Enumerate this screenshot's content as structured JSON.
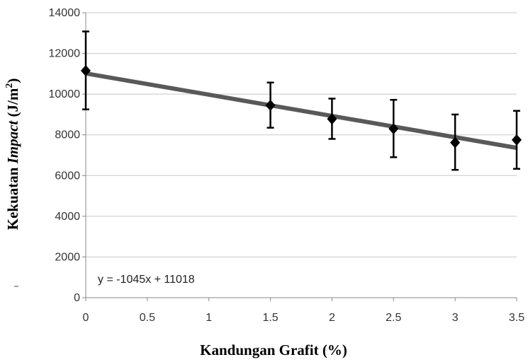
{
  "chart_data": {
    "type": "scatter",
    "title": "",
    "xlabel": "Kandungan Grafit (%)",
    "ylabel": {
      "pre": "Kekuatan ",
      "italic": "Impact",
      "post": " (J/m",
      "sup": "2",
      "end": ")"
    },
    "xlim": [
      0,
      3.5
    ],
    "ylim": [
      0,
      14000
    ],
    "x_ticks": [
      "0",
      "0.5",
      "1",
      "1.5",
      "2",
      "2.5",
      "3",
      "3.5"
    ],
    "y_ticks": [
      "0",
      "2000",
      "4000",
      "6000",
      "8000",
      "10000",
      "12000",
      "14000"
    ],
    "grid": {
      "horizontal": true,
      "vertical": false
    },
    "series": [
      {
        "marker": "diamond",
        "x": [
          0,
          1.5,
          2,
          2.5,
          3,
          3.5
        ],
        "y": [
          11150,
          9450,
          8780,
          8300,
          7620,
          7750
        ],
        "err_low": [
          9250,
          8350,
          7800,
          6900,
          6280,
          6330
        ],
        "err_high": [
          13080,
          10570,
          9780,
          9720,
          9000,
          9180
        ]
      }
    ],
    "trendline": {
      "type": "linear",
      "slope": -1045,
      "intercept": 11018,
      "equation": "y = -1045x + 11018",
      "color": "#595959"
    },
    "colors": {
      "marker": "#000000",
      "grid": "#c8c8c8",
      "axis": "#888888",
      "errorbar": "#000000"
    }
  }
}
